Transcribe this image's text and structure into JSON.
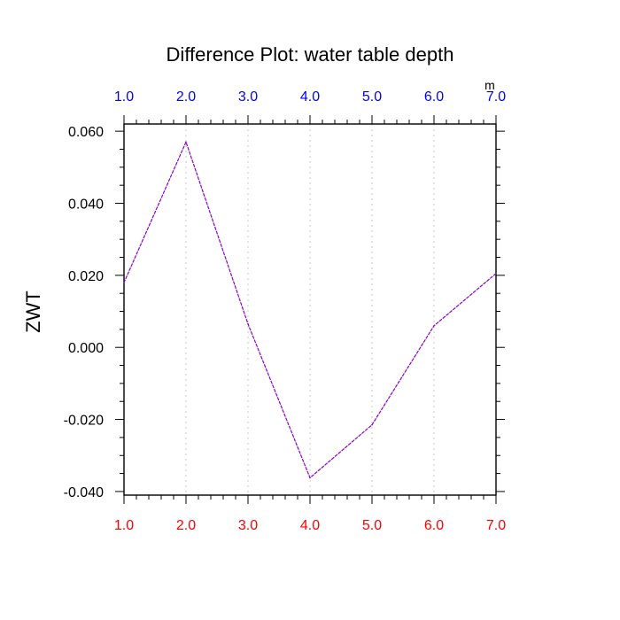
{
  "chart_data": {
    "type": "line",
    "title": "Difference Plot: water table depth",
    "ylabel": "ZWT",
    "xlabel": "",
    "units_label": "m",
    "x": [
      1,
      2,
      3,
      4,
      5,
      6,
      7
    ],
    "series": [
      {
        "values": [
          0.018,
          0.057,
          0.0065,
          -0.0362,
          -0.0215,
          0.006,
          0.0205
        ],
        "color": "#8800cc",
        "line_style": "dashed"
      }
    ],
    "xlim": [
      1,
      7
    ],
    "ylim": [
      -0.041,
      0.062
    ],
    "x_ticks": [
      1,
      2,
      3,
      4,
      5,
      6,
      7
    ],
    "x_tick_labels_bottom": [
      "1.0",
      "2.0",
      "3.0",
      "4.0",
      "5.0",
      "6.0",
      "7.0"
    ],
    "x_tick_labels_top": [
      "1.0",
      "2.0",
      "3.0",
      "4.0",
      "5.0",
      "6.0",
      "7.0"
    ],
    "y_ticks": [
      0.06,
      0.04,
      0.02,
      0.0,
      -0.02,
      -0.04
    ],
    "y_tick_labels": [
      "0.060",
      "0.040",
      "0.020",
      "0.000",
      "-0.020",
      "-0.040"
    ],
    "bottom_tick_color": "#ff0000",
    "top_tick_color": "#0000ff",
    "grid": "vertical dotted gray",
    "legend": "none"
  }
}
